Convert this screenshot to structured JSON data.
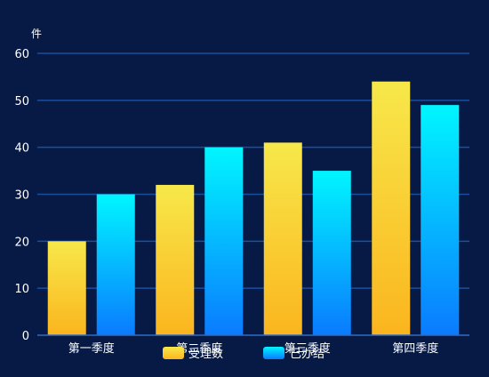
{
  "chart_data": {
    "type": "bar",
    "title": "",
    "xlabel": "",
    "ylabel": "件",
    "ylim": [
      0,
      60
    ],
    "yticks": [
      0,
      10,
      20,
      30,
      40,
      50,
      60
    ],
    "grid": true,
    "legend": "bottom-center",
    "categories": [
      "第一季度",
      "第二季度",
      "第三季度",
      "第四季度"
    ],
    "series": [
      {
        "name": "受理数",
        "values": [
          20,
          32,
          41,
          54
        ],
        "color_top": "#f7e84a",
        "color_bottom": "#fbb51e"
      },
      {
        "name": "已办结",
        "values": [
          30,
          40,
          35,
          49
        ],
        "color_top": "#00f6ff",
        "color_bottom": "#0a7bff"
      }
    ]
  },
  "colors": {
    "background": "#061a45",
    "grid": "#1a4f9c",
    "axis": "#2f6cc4",
    "text": "#ffffff"
  }
}
